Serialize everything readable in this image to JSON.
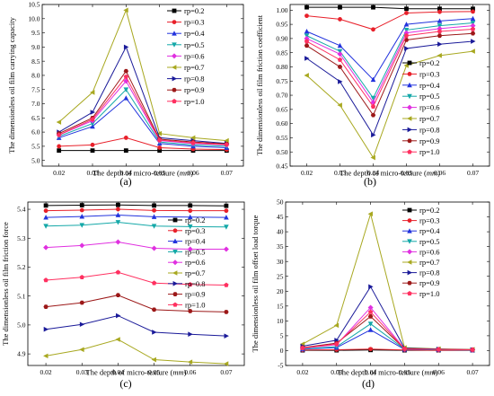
{
  "figure": {
    "panel_labels": [
      "(a)",
      "(b)",
      "(c)",
      "(d)"
    ]
  },
  "colors": {
    "rp=0.2": "#000000",
    "rp=0.3": "#e8202a",
    "rp=0.4": "#2233dd",
    "rp=0.5": "#14a8a8",
    "rp=0.6": "#e030e0",
    "rp=0.7": "#a8a820",
    "rp=0.8": "#1a1a99",
    "rp=0.9": "#9c1818",
    "rp=1.0": "#ff3060"
  },
  "chart_data": [
    {
      "type": "line",
      "panel_label": "(a)",
      "title": "",
      "xlabel": "The depth of micro-texture (mm)",
      "xlabel_main": "The depth of micro-texture (",
      "xlabel_unit": "mm",
      "xlabel_close": ")",
      "ylabel": "The dimensionless oil film carrying capacity",
      "x": [
        0.02,
        0.03,
        0.04,
        0.05,
        0.06,
        0.07
      ],
      "x_ticks": [
        "0.02",
        "0.03",
        "0.04",
        "0.05",
        "0.06",
        "0.07"
      ],
      "xlim": [
        0.015,
        0.075
      ],
      "ylim": [
        4.8,
        10.5
      ],
      "y_ticks": [
        5.0,
        5.5,
        6.0,
        6.5,
        7.0,
        7.5,
        8.0,
        8.5,
        9.0,
        9.5,
        10.0,
        10.5
      ],
      "y_tick_labels": [
        "5.0",
        "5.5",
        "6.0",
        "6.5",
        "7.0",
        "7.5",
        "8.0",
        "8.5",
        "9.0",
        "9.5",
        "10.0",
        "10.5"
      ],
      "legend_position": "top-right",
      "series": [
        {
          "name": "rp=0.2",
          "values": [
            5.35,
            5.35,
            5.35,
            5.35,
            5.35,
            5.35
          ]
        },
        {
          "name": "rp=0.3",
          "values": [
            5.5,
            5.55,
            5.8,
            5.45,
            5.4,
            5.38
          ]
        },
        {
          "name": "rp=0.4",
          "values": [
            5.8,
            6.2,
            7.2,
            5.6,
            5.5,
            5.45
          ]
        },
        {
          "name": "rp=0.5",
          "values": [
            5.85,
            6.3,
            7.5,
            5.65,
            5.55,
            5.5
          ]
        },
        {
          "name": "rp=0.6",
          "values": [
            5.9,
            6.4,
            7.8,
            5.7,
            5.6,
            5.55
          ]
        },
        {
          "name": "rp=0.7",
          "values": [
            6.35,
            7.4,
            10.3,
            5.95,
            5.8,
            5.7
          ]
        },
        {
          "name": "rp=0.8",
          "values": [
            6.0,
            6.7,
            9.0,
            5.8,
            5.7,
            5.6
          ]
        },
        {
          "name": "rp=0.9",
          "values": [
            5.95,
            6.5,
            8.15,
            5.75,
            5.65,
            5.58
          ]
        },
        {
          "name": "rp=1.0",
          "values": [
            5.9,
            6.45,
            7.95,
            5.72,
            5.62,
            5.56
          ]
        }
      ]
    },
    {
      "type": "line",
      "panel_label": "(b)",
      "title": "",
      "xlabel": "The depth of micro-texture (mm)",
      "xlabel_main": "The depth of micro-texture (",
      "xlabel_unit": "mm",
      "xlabel_close": ")",
      "ylabel": "The dimensionless oil film friction coefficient",
      "x": [
        0.02,
        0.03,
        0.04,
        0.05,
        0.06,
        0.07
      ],
      "x_ticks": [
        "0.02",
        "0.03",
        "0.04",
        "0.05",
        "0.06",
        "0.07"
      ],
      "xlim": [
        0.015,
        0.075
      ],
      "ylim": [
        0.45,
        1.02
      ],
      "y_ticks": [
        0.45,
        0.5,
        0.55,
        0.6,
        0.65,
        0.7,
        0.75,
        0.8,
        0.85,
        0.9,
        0.95,
        1.0
      ],
      "y_tick_labels": [
        "0.45",
        "0.50",
        "0.55",
        "0.60",
        "0.65",
        "0.70",
        "0.75",
        "0.80",
        "0.85",
        "0.90",
        "0.95",
        "1.00"
      ],
      "legend_position": "bottom-right",
      "series": [
        {
          "name": "rp=0.2",
          "values": [
            1.01,
            1.01,
            1.01,
            1.005,
            1.005,
            1.005
          ]
        },
        {
          "name": "rp=0.3",
          "values": [
            0.98,
            0.968,
            0.932,
            0.99,
            0.994,
            0.995
          ]
        },
        {
          "name": "rp=0.4",
          "values": [
            0.925,
            0.875,
            0.755,
            0.95,
            0.962,
            0.97
          ]
        },
        {
          "name": "rp=0.5",
          "values": [
            0.91,
            0.855,
            0.69,
            0.93,
            0.945,
            0.955
          ]
        },
        {
          "name": "rp=0.6",
          "values": [
            0.9,
            0.845,
            0.675,
            0.92,
            0.935,
            0.945
          ]
        },
        {
          "name": "rp=0.7",
          "values": [
            0.77,
            0.665,
            0.48,
            0.805,
            0.84,
            0.855
          ]
        },
        {
          "name": "rp=0.8",
          "values": [
            0.83,
            0.748,
            0.56,
            0.865,
            0.88,
            0.89
          ]
        },
        {
          "name": "rp=0.9",
          "values": [
            0.875,
            0.8,
            0.63,
            0.895,
            0.91,
            0.918
          ]
        },
        {
          "name": "rp=1.0",
          "values": [
            0.89,
            0.825,
            0.66,
            0.91,
            0.925,
            0.933
          ]
        }
      ]
    },
    {
      "type": "line",
      "panel_label": "(c)",
      "title": "",
      "xlabel": "The depth of micro-texture (mm)",
      "xlabel_main": "The depth of micro-texture (",
      "xlabel_unit": "mm",
      "xlabel_close": ")",
      "ylabel": "The dimensionless oil film friction force",
      "x": [
        0.02,
        0.03,
        0.04,
        0.05,
        0.06,
        0.07
      ],
      "x_ticks": [
        "0.02",
        "0.03",
        "0.04",
        "0.05",
        "0.06",
        "0.07"
      ],
      "xlim": [
        0.015,
        0.075
      ],
      "ylim": [
        4.86,
        5.425
      ],
      "y_ticks": [
        4.9,
        5.0,
        5.1,
        5.2,
        5.3,
        5.4
      ],
      "y_tick_labels": [
        "4.9",
        "5.0",
        "5.1",
        "5.2",
        "5.3",
        "5.4"
      ],
      "legend_position": "right",
      "series": [
        {
          "name": "rp=0.2",
          "values": [
            5.413,
            5.414,
            5.415,
            5.413,
            5.413,
            5.412
          ]
        },
        {
          "name": "rp=0.3",
          "values": [
            5.395,
            5.397,
            5.4,
            5.396,
            5.395,
            5.395
          ]
        },
        {
          "name": "rp=0.4",
          "values": [
            5.372,
            5.375,
            5.38,
            5.374,
            5.373,
            5.372
          ]
        },
        {
          "name": "rp=0.5",
          "values": [
            5.342,
            5.345,
            5.355,
            5.342,
            5.34,
            5.339
          ]
        },
        {
          "name": "rp=0.6",
          "values": [
            5.268,
            5.275,
            5.287,
            5.265,
            5.262,
            5.262
          ]
        },
        {
          "name": "rp=0.7",
          "values": [
            4.893,
            4.915,
            4.95,
            4.88,
            4.872,
            4.866
          ]
        },
        {
          "name": "rp=0.8",
          "values": [
            4.985,
            5.002,
            5.032,
            4.975,
            4.968,
            4.962
          ]
        },
        {
          "name": "rp=0.9",
          "values": [
            5.063,
            5.077,
            5.103,
            5.053,
            5.048,
            5.045
          ]
        },
        {
          "name": "rp=1.0",
          "values": [
            5.155,
            5.165,
            5.182,
            5.145,
            5.14,
            5.138
          ]
        }
      ]
    },
    {
      "type": "line",
      "panel_label": "(d)",
      "title": "",
      "xlabel": "The depth of micro-texture (mm)",
      "xlabel_main": "The depth of micro-texture (",
      "xlabel_unit": "mm",
      "xlabel_close": ")",
      "ylabel": "The dimensionless oil film offset load torque",
      "x": [
        0.02,
        0.03,
        0.04,
        0.05,
        0.06,
        0.07
      ],
      "x_ticks": [
        "0.02",
        "0.03",
        "0.04",
        "0.05",
        "0.06",
        "0.07"
      ],
      "xlim": [
        0.015,
        0.075
      ],
      "ylim": [
        -5,
        50
      ],
      "y_ticks": [
        -5,
        0,
        5,
        10,
        15,
        20,
        25,
        30,
        35,
        40,
        45,
        50
      ],
      "y_tick_labels": [
        "-5",
        "0",
        "5",
        "10",
        "15",
        "20",
        "25",
        "30",
        "35",
        "40",
        "45",
        "50"
      ],
      "legend_position": "top-right",
      "series": [
        {
          "name": "rp=0.2",
          "values": [
            0.1,
            0.1,
            0.2,
            0.1,
            0.1,
            0.1
          ]
        },
        {
          "name": "rp=0.3",
          "values": [
            0.2,
            0.3,
            0.5,
            0.2,
            0.1,
            0.1
          ]
        },
        {
          "name": "rp=0.4",
          "values": [
            0.5,
            1.0,
            7.0,
            0.4,
            0.3,
            0.2
          ]
        },
        {
          "name": "rp=0.5",
          "values": [
            0.6,
            1.3,
            9.0,
            0.5,
            0.3,
            0.2
          ]
        },
        {
          "name": "rp=0.6",
          "values": [
            0.8,
            2.0,
            14.5,
            0.6,
            0.4,
            0.3
          ]
        },
        {
          "name": "rp=0.7",
          "values": [
            2.2,
            8.5,
            46.0,
            1.0,
            0.6,
            0.4
          ]
        },
        {
          "name": "rp=0.8",
          "values": [
            1.5,
            3.5,
            21.5,
            0.8,
            0.5,
            0.3
          ]
        },
        {
          "name": "rp=0.9",
          "values": [
            1.0,
            2.5,
            11.5,
            0.6,
            0.4,
            0.3
          ]
        },
        {
          "name": "rp=1.0",
          "values": [
            0.9,
            2.2,
            13.0,
            0.6,
            0.4,
            0.3
          ]
        }
      ]
    }
  ]
}
